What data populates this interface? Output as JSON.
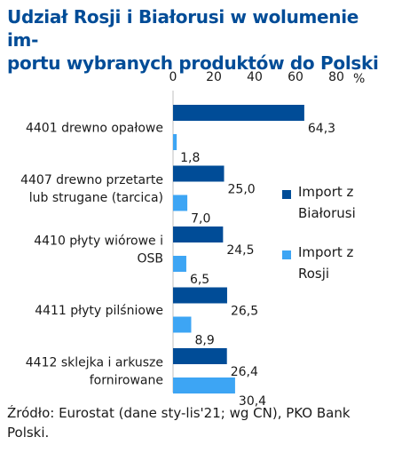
{
  "title_lines": [
    "Udział Rosji i Białorusi w wolumenie im-",
    "portu wybranych produktów do Polski"
  ],
  "source": "Źródło: Eurostat (dane sty-lis'21; wg CN), PKO Bank Polski.",
  "colors": {
    "belarus": "#004c97",
    "russia": "#3da5f4",
    "title": "#004c97"
  },
  "chart_data": {
    "type": "bar",
    "orientation": "horizontal",
    "title": "Udział Rosji i Białorusi w wolumenie importu wybranych produktów do Polski",
    "xlim": [
      0,
      80
    ],
    "xticks": [
      "0",
      "20",
      "40",
      "60",
      "80"
    ],
    "xunit": "%",
    "axis_position": "top",
    "legend_position": "right",
    "categories": [
      [
        "4401 drewno opałowe"
      ],
      [
        "4407 drewno przetarte",
        "lub strugane (tarcica)"
      ],
      [
        "4410 płyty wiórowe i",
        "OSB"
      ],
      [
        "4411 płyty pilśniowe"
      ],
      [
        "4412 sklejka i arkusze",
        "fornirowane"
      ]
    ],
    "series": [
      {
        "name": [
          "Import z",
          "Białorusi"
        ],
        "values": [
          64.3,
          25.0,
          24.5,
          26.5,
          26.4
        ],
        "labels": [
          "64,3",
          "25,0",
          "24,5",
          "26,5",
          "26,4"
        ]
      },
      {
        "name": [
          "Import z",
          "Rosji"
        ],
        "values": [
          1.8,
          7.0,
          6.5,
          8.9,
          30.4
        ],
        "labels": [
          "1,8",
          "7,0",
          "6,5",
          "8,9",
          "30,4"
        ]
      }
    ]
  }
}
